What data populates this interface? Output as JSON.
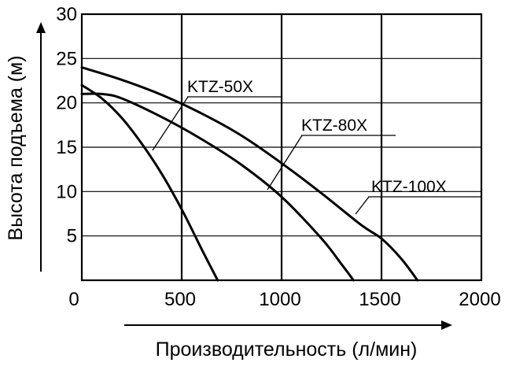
{
  "chart_data": {
    "type": "line",
    "xlabel": "Производительность (л/мин)",
    "ylabel": "Высота подъема (м)",
    "xlim": [
      0,
      2000
    ],
    "ylim": [
      0,
      30
    ],
    "x_ticks": [
      "0",
      "500",
      "1000",
      "1500",
      "2000"
    ],
    "y_ticks": [
      "5",
      "10",
      "15",
      "20",
      "25",
      "30"
    ],
    "grid": true,
    "series": [
      {
        "name": "KTZ-50X",
        "x": [
          0,
          100,
          200,
          300,
          400,
          500,
          600,
          680
        ],
        "y": [
          22,
          20.5,
          18.3,
          15.4,
          12,
          8,
          3.5,
          0
        ]
      },
      {
        "name": "KTZ-80X",
        "x": [
          0,
          100,
          200,
          400,
          600,
          800,
          1000,
          1200,
          1300,
          1360
        ],
        "y": [
          21,
          21,
          20.5,
          18.4,
          15.9,
          13,
          9.4,
          4.7,
          1.8,
          0
        ]
      },
      {
        "name": "KTZ-100X",
        "x": [
          0,
          200,
          400,
          600,
          800,
          1000,
          1200,
          1400,
          1500,
          1600,
          1680
        ],
        "y": [
          24,
          22.6,
          20.9,
          18.8,
          16.3,
          13.2,
          9.8,
          6.2,
          4.7,
          2.4,
          0
        ]
      }
    ]
  }
}
